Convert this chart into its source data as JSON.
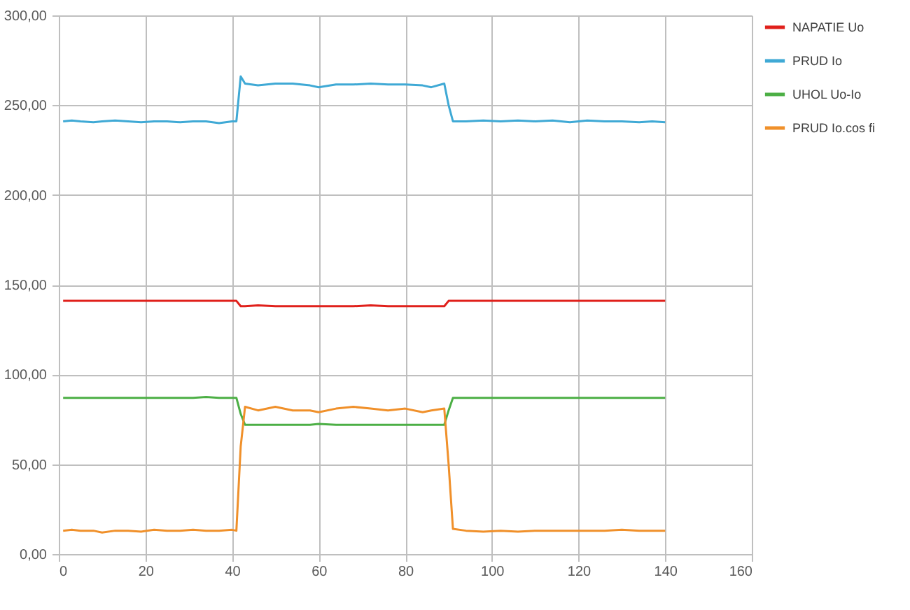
{
  "chart_data": {
    "type": "line",
    "x": [
      1,
      3,
      5,
      8,
      10,
      13,
      16,
      19,
      22,
      25,
      28,
      31,
      34,
      37,
      40,
      41,
      42,
      43,
      46,
      50,
      54,
      58,
      60,
      64,
      68,
      72,
      76,
      80,
      84,
      86,
      89,
      90,
      91,
      94,
      98,
      102,
      106,
      110,
      114,
      118,
      122,
      126,
      130,
      134,
      137,
      140
    ],
    "series": [
      {
        "name": "NAPATIE Uo",
        "color": "#e0201b",
        "values": [
          141,
          141,
          141,
          141,
          141,
          141,
          141,
          141,
          141,
          141,
          141,
          141,
          141,
          141,
          141,
          141,
          138,
          138,
          138.5,
          138,
          138,
          138,
          138,
          138,
          138,
          138.5,
          138,
          138,
          138,
          138,
          138,
          141,
          141,
          141,
          141,
          141,
          141,
          141,
          141,
          141,
          141,
          141,
          141,
          141,
          141,
          141
        ]
      },
      {
        "name": "PRUD Io",
        "color": "#3fa9d5",
        "values": [
          241,
          241.5,
          241,
          240.5,
          241,
          241.5,
          241,
          240.5,
          241,
          241,
          240.5,
          241,
          241,
          240,
          241,
          241,
          266,
          262,
          261,
          262,
          262,
          261,
          260,
          261.5,
          261.5,
          262,
          261.5,
          261.5,
          261,
          260,
          262,
          250,
          241,
          241,
          241.5,
          241,
          241.5,
          241,
          241.5,
          240.5,
          241.5,
          241,
          241,
          240.5,
          241,
          240.5
        ]
      },
      {
        "name": "UHOL Uo-Io",
        "color": "#4caf45",
        "values": [
          87,
          87,
          87,
          87,
          87,
          87,
          87,
          87,
          87,
          87,
          87,
          87,
          87.5,
          87,
          87,
          87,
          78,
          72,
          72,
          72,
          72,
          72,
          72.5,
          72,
          72,
          72,
          72,
          72,
          72,
          72,
          72,
          80,
          87,
          87,
          87,
          87,
          87,
          87,
          87,
          87,
          87,
          87,
          87,
          87,
          87,
          87
        ]
      },
      {
        "name": "PRUD Io.cos fi",
        "color": "#f0902a",
        "values": [
          13,
          13.5,
          13,
          13,
          12,
          13,
          13,
          12.5,
          13.5,
          13,
          13,
          13.5,
          13,
          13,
          13.5,
          13,
          60,
          82,
          80,
          82,
          80,
          80,
          79,
          81,
          82,
          81,
          80,
          81,
          79,
          80,
          81,
          50,
          14,
          13,
          12.5,
          13,
          12.5,
          13,
          13,
          13,
          13,
          13,
          13.5,
          13,
          13,
          13
        ]
      }
    ],
    "xlim": [
      0,
      160
    ],
    "xticks": [
      0,
      20,
      40,
      60,
      80,
      100,
      120,
      140,
      160
    ],
    "ylim": [
      0,
      300
    ],
    "yticks": [
      {
        "value": 0,
        "label": "0,00"
      },
      {
        "value": 50,
        "label": "50,00"
      },
      {
        "value": 100,
        "label": "100,00"
      },
      {
        "value": 150,
        "label": "150,00"
      },
      {
        "value": 200,
        "label": "200,00"
      },
      {
        "value": 250,
        "label": "250,00"
      },
      {
        "value": 300,
        "label": "300,00"
      }
    ],
    "grid": true,
    "legend": "right",
    "line_style": "solid"
  }
}
